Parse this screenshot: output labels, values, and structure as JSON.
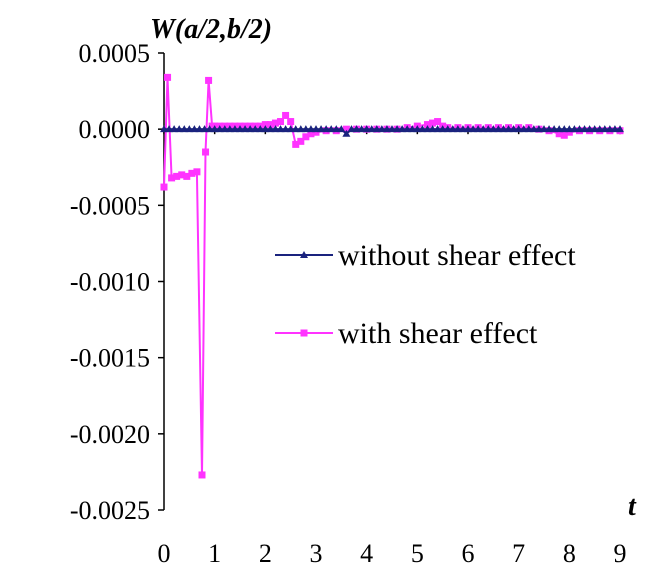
{
  "chart_data": {
    "type": "line",
    "ylabel": "W(a/2,b/2)",
    "xlabel": "t",
    "xlim": [
      0,
      9
    ],
    "ylim": [
      -0.0025,
      0.0005
    ],
    "x_ticks": [
      "0",
      "1",
      "2",
      "3",
      "4",
      "5",
      "6",
      "7",
      "8",
      "9"
    ],
    "y_ticks": [
      "0.0005",
      "0.0000",
      "-0.0005",
      "-0.0010",
      "-0.0015",
      "-0.0020",
      "-0.0025"
    ],
    "legend": "right",
    "grid": false,
    "series": [
      {
        "name": "without shear effect",
        "color": "#1a237e",
        "marker": "triangle",
        "x": [
          0,
          0.1,
          0.2,
          0.3,
          0.4,
          0.5,
          0.6,
          0.7,
          0.8,
          0.9,
          1.0,
          1.1,
          1.2,
          1.3,
          1.4,
          1.5,
          1.6,
          1.7,
          1.8,
          1.9,
          2.0,
          2.1,
          2.2,
          2.3,
          2.4,
          2.5,
          2.6,
          2.7,
          2.8,
          2.9,
          3.0,
          3.1,
          3.2,
          3.3,
          3.4,
          3.5,
          3.6,
          3.7,
          3.8,
          3.9,
          4.0,
          4.1,
          4.2,
          4.3,
          4.4,
          4.5,
          4.6,
          4.7,
          4.8,
          4.9,
          5.0,
          5.1,
          5.2,
          5.3,
          5.4,
          5.5,
          5.6,
          5.7,
          5.8,
          5.9,
          6.0,
          6.1,
          6.2,
          6.3,
          6.4,
          6.5,
          6.6,
          6.7,
          6.8,
          6.9,
          7.0,
          7.1,
          7.2,
          7.3,
          7.4,
          7.5,
          7.6,
          7.7,
          7.8,
          7.9,
          8.0,
          8.1,
          8.2,
          8.3,
          8.4,
          8.5,
          8.6,
          8.7,
          8.8,
          8.9,
          9.0
        ],
        "y": [
          0,
          0,
          0,
          0,
          0,
          0,
          0,
          0,
          0,
          0,
          0,
          0,
          0,
          0,
          0,
          0,
          0,
          0,
          0,
          0,
          0,
          0,
          0,
          0,
          0,
          0,
          0,
          0,
          0,
          0,
          0,
          0,
          0,
          0,
          0,
          0,
          -3e-05,
          0,
          0,
          0,
          0,
          0,
          0,
          0,
          0,
          0,
          0,
          0,
          0,
          0,
          0,
          0,
          0,
          0,
          0,
          0,
          0,
          0,
          0,
          0,
          0,
          0,
          0,
          0,
          0,
          0,
          0,
          0,
          0,
          0,
          0,
          0,
          0,
          0,
          0,
          0,
          0,
          0,
          0,
          0,
          0,
          0,
          0,
          0,
          0,
          0,
          0,
          0,
          0,
          0,
          0
        ]
      },
      {
        "name": "with shear effect",
        "color": "#ff33ff",
        "marker": "square",
        "x": [
          0,
          0.07,
          0.15,
          0.25,
          0.35,
          0.45,
          0.55,
          0.65,
          0.75,
          0.82,
          0.88,
          0.95,
          1.0,
          1.1,
          1.2,
          1.3,
          1.4,
          1.5,
          1.6,
          1.7,
          1.8,
          1.9,
          2.0,
          2.1,
          2.2,
          2.3,
          2.4,
          2.5,
          2.6,
          2.7,
          2.8,
          2.9,
          3.0,
          3.2,
          3.4,
          3.6,
          3.8,
          4.0,
          4.2,
          4.4,
          4.6,
          4.8,
          5.0,
          5.2,
          5.3,
          5.4,
          5.5,
          5.6,
          5.8,
          6.0,
          6.2,
          6.4,
          6.6,
          6.8,
          7.0,
          7.2,
          7.4,
          7.6,
          7.8,
          7.9,
          8.0,
          8.2,
          8.4,
          8.6,
          8.8,
          9.0
        ],
        "y": [
          -0.00038,
          0.00034,
          -0.00032,
          -0.00031,
          -0.0003,
          -0.00031,
          -0.00029,
          -0.00028,
          -0.00227,
          -0.00015,
          0.00032,
          2e-05,
          2e-05,
          2e-05,
          2e-05,
          2e-05,
          2e-05,
          2e-05,
          2e-05,
          2e-05,
          2e-05,
          2e-05,
          3e-05,
          3e-05,
          4e-05,
          5e-05,
          9e-05,
          5e-05,
          -0.0001,
          -8e-05,
          -5e-05,
          -3e-05,
          -2e-05,
          -1e-05,
          -1e-05,
          0,
          0,
          0,
          0,
          0,
          0,
          1e-05,
          2e-05,
          3e-05,
          4e-05,
          5e-05,
          2e-05,
          1e-05,
          1e-05,
          1e-05,
          1e-05,
          1e-05,
          1e-05,
          1e-05,
          1e-05,
          1e-05,
          0,
          -1e-05,
          -3e-05,
          -4e-05,
          -2e-05,
          -1e-05,
          -1e-05,
          -1e-05,
          -1e-05,
          -1e-05
        ]
      }
    ]
  }
}
